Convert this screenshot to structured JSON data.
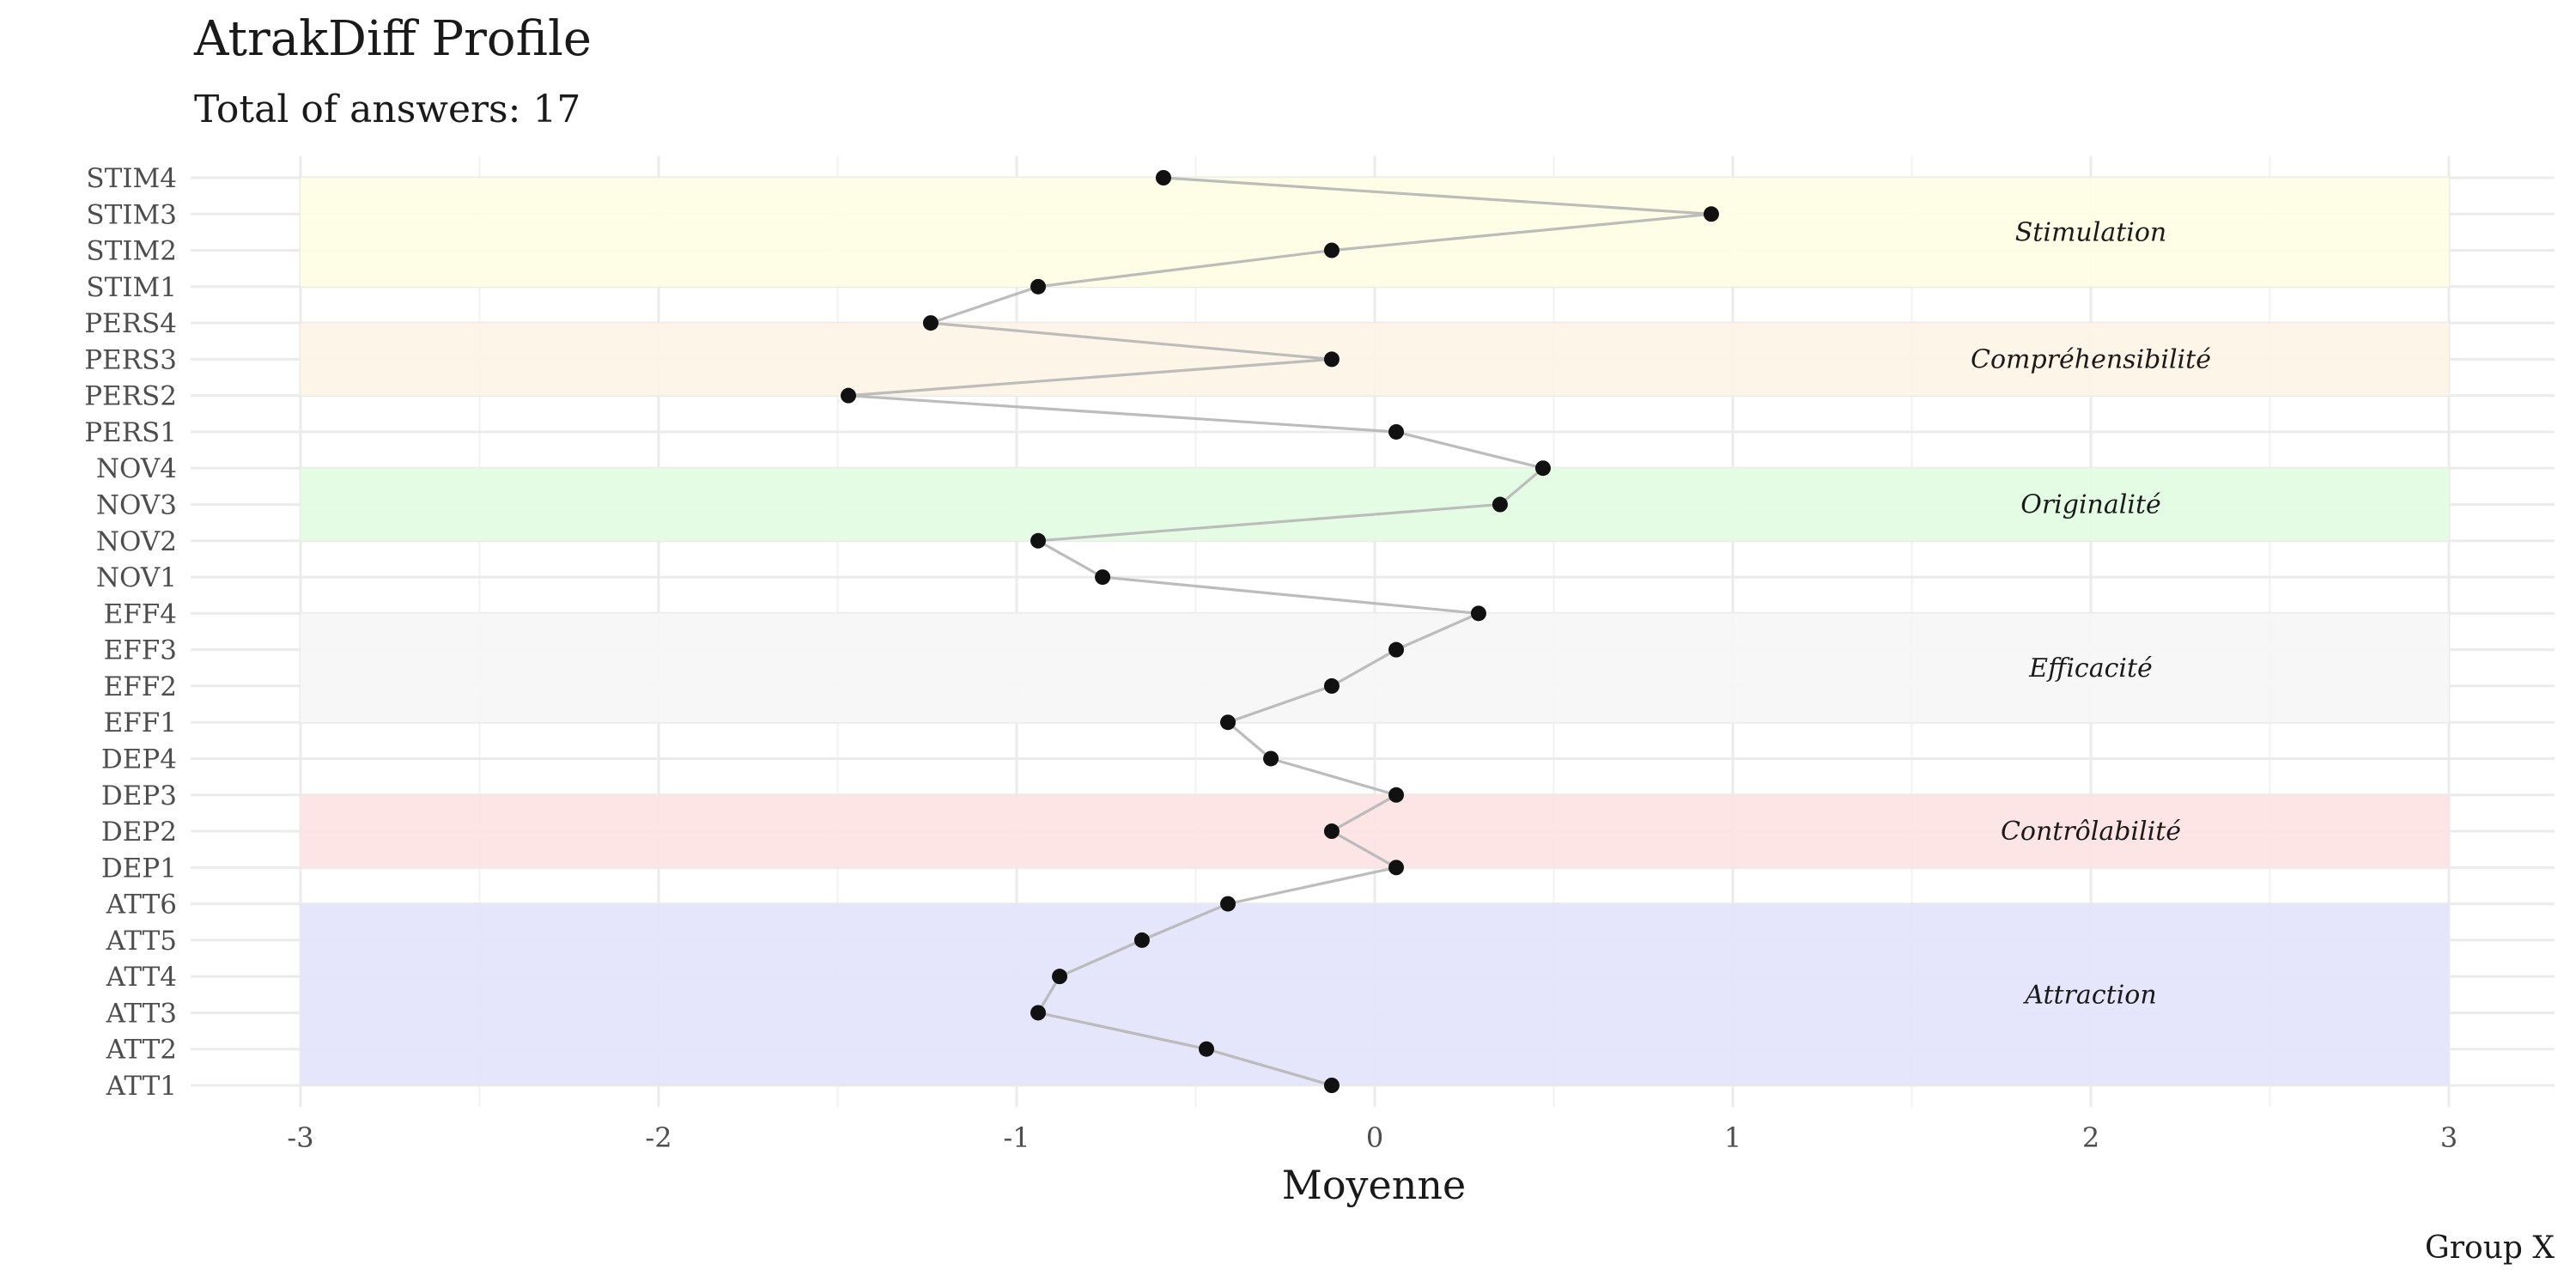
{
  "chart_data": {
    "type": "scatter",
    "title": "AtrakDiff Profile",
    "subtitle": "Total of answers: 17",
    "xlabel": "Moyenne",
    "ylabel": "",
    "caption": "Group X",
    "xlim": [
      -3.3,
      3.3
    ],
    "xticks": [
      "-3",
      "-2",
      "-1",
      "0",
      "1",
      "2",
      "3"
    ],
    "xtick_values": [
      -3,
      -2,
      -1,
      0,
      1,
      2,
      3
    ],
    "grid": true,
    "categories": [
      "ATT1",
      "ATT2",
      "ATT3",
      "ATT4",
      "ATT5",
      "ATT6",
      "DEP1",
      "DEP2",
      "DEP3",
      "DEP4",
      "EFF1",
      "EFF2",
      "EFF3",
      "EFF4",
      "NOV1",
      "NOV2",
      "NOV3",
      "NOV4",
      "PERS1",
      "PERS2",
      "PERS3",
      "PERS4",
      "STIM1",
      "STIM2",
      "STIM3",
      "STIM4"
    ],
    "values": [
      -0.12,
      -0.47,
      -0.94,
      -0.88,
      -0.65,
      -0.41,
      0.06,
      -0.12,
      0.06,
      -0.29,
      -0.41,
      -0.12,
      0.06,
      0.29,
      -0.76,
      -0.94,
      0.35,
      0.47,
      0.06,
      -1.47,
      -0.12,
      -1.24,
      -0.94,
      -0.12,
      0.94,
      -0.59
    ],
    "bands": [
      {
        "label": "Attraction",
        "from": "ATT1",
        "to": "ATT6",
        "color": "#e3e3fb"
      },
      {
        "label": "Contrôlabilité",
        "from": "DEP1",
        "to": "DEP3",
        "color": "#fde3e4"
      },
      {
        "label": "Efficacité",
        "from": "EFF1",
        "to": "EFF4",
        "color": "#f6f6f6"
      },
      {
        "label": "Originalité",
        "from": "NOV2",
        "to": "NOV4",
        "color": "#e2fce2"
      },
      {
        "label": "Compréhensibilité",
        "from": "PERS2",
        "to": "PERS4",
        "color": "#fdf4e5"
      },
      {
        "label": "Stimulation",
        "from": "STIM1",
        "to": "STIM4",
        "color": "#fefee4"
      }
    ],
    "colors": {
      "line": "#b8b8b8",
      "point": "#111111"
    }
  }
}
